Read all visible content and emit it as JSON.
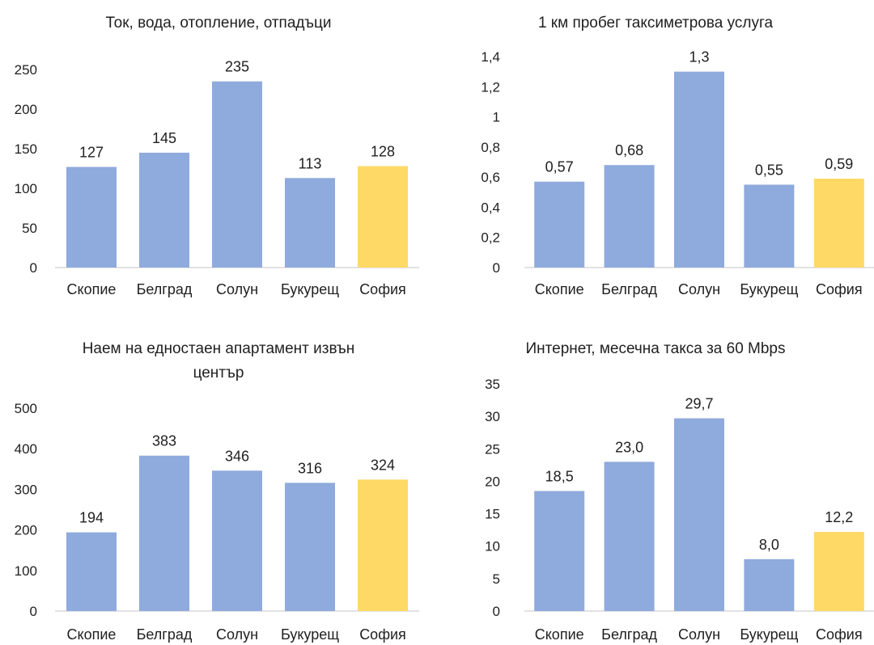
{
  "chart_data": [
    {
      "type": "bar",
      "title_lines": [
        "Ток, вода, отопление, отпадъци"
      ],
      "categories": [
        "Скопие",
        "Белград",
        "Солун",
        "Букурещ",
        "София"
      ],
      "values": [
        127,
        145,
        235,
        113,
        128
      ],
      "value_labels": [
        "127",
        "145",
        "235",
        "113",
        "128"
      ],
      "ylim": [
        0,
        250
      ],
      "yticks": [
        "0",
        "50",
        "100",
        "150",
        "200",
        "250"
      ],
      "ytick_values": [
        0,
        50,
        100,
        150,
        200,
        250
      ],
      "grid": false,
      "legend": "none",
      "colors": [
        "#8faadc",
        "#8faadc",
        "#8faadc",
        "#8faadc",
        "#ffd966"
      ]
    },
    {
      "type": "bar",
      "title_lines": [
        "1 км пробег таксиметрова услуга"
      ],
      "categories": [
        "Скопие",
        "Белград",
        "Солун",
        "Букурещ",
        "София"
      ],
      "values": [
        0.57,
        0.68,
        1.3,
        0.55,
        0.59
      ],
      "value_labels": [
        "0,57",
        "0,68",
        "1,3",
        "0,55",
        "0,59"
      ],
      "ylim": [
        0,
        1.4
      ],
      "yticks": [
        "0",
        "0,2",
        "0,4",
        "0,6",
        "0,8",
        "1",
        "1,2",
        "1,4"
      ],
      "ytick_values": [
        0,
        0.2,
        0.4,
        0.6,
        0.8,
        1,
        1.2,
        1.4
      ],
      "grid": false,
      "legend": "none",
      "colors": [
        "#8faadc",
        "#8faadc",
        "#8faadc",
        "#8faadc",
        "#ffd966"
      ]
    },
    {
      "type": "bar",
      "title_lines": [
        "Наем на едностаен апартамент извън",
        "център"
      ],
      "categories": [
        "Скопие",
        "Белград",
        "Солун",
        "Букурещ",
        "София"
      ],
      "values": [
        194,
        383,
        346,
        316,
        324
      ],
      "value_labels": [
        "194",
        "383",
        "346",
        "316",
        "324"
      ],
      "ylim": [
        0,
        500
      ],
      "yticks": [
        "0",
        "100",
        "200",
        "300",
        "400",
        "500"
      ],
      "ytick_values": [
        0,
        100,
        200,
        300,
        400,
        500
      ],
      "grid": false,
      "legend": "none",
      "colors": [
        "#8faadc",
        "#8faadc",
        "#8faadc",
        "#8faadc",
        "#ffd966"
      ]
    },
    {
      "type": "bar",
      "title_lines": [
        "Интернет, месечна такса за 60 Mbps"
      ],
      "categories": [
        "Скопие",
        "Белград",
        "Солун",
        "Букурещ",
        "София"
      ],
      "values": [
        18.5,
        23.0,
        29.7,
        8.0,
        12.2
      ],
      "value_labels": [
        "18,5",
        "23,0",
        "29,7",
        "8,0",
        "12,2"
      ],
      "ylim": [
        0,
        35
      ],
      "yticks": [
        "0",
        "5",
        "10",
        "15",
        "20",
        "25",
        "30",
        "35"
      ],
      "ytick_values": [
        0,
        5,
        10,
        15,
        20,
        25,
        30,
        35
      ],
      "grid": false,
      "legend": "none",
      "colors": [
        "#8faadc",
        "#8faadc",
        "#8faadc",
        "#8faadc",
        "#ffd966"
      ]
    }
  ],
  "axis_color": "#d9d9d9"
}
